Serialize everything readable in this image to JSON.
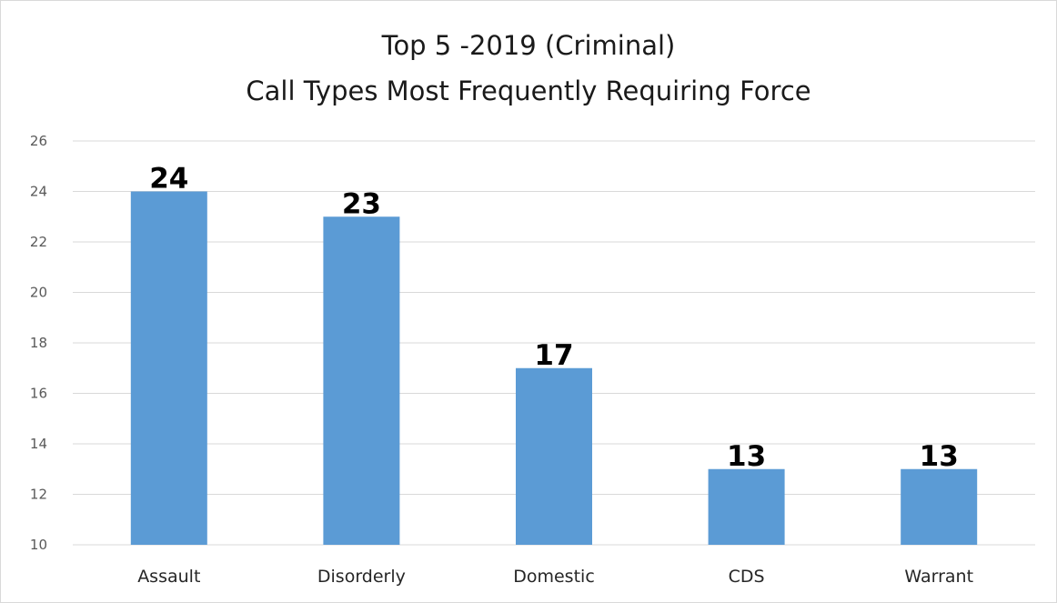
{
  "chart_data": {
    "type": "bar",
    "title": "Top 5 -2019 (Criminal)",
    "subtitle": "Call Types Most Frequently Requiring Force",
    "categories": [
      "Assault",
      "Disorderly",
      "Domestic",
      "CDS",
      "Warrant"
    ],
    "series": [
      {
        "values": [
          24,
          23,
          17,
          13,
          13
        ]
      }
    ],
    "ylim": [
      10,
      26
    ],
    "yticks": [
      10,
      12,
      14,
      16,
      18,
      20,
      22,
      24,
      26
    ],
    "xlabel": "",
    "ylabel": "",
    "grid": true,
    "legend": "none",
    "colors": {
      "bar": "#5b9bd5",
      "grid": "#d9d9d9"
    }
  }
}
